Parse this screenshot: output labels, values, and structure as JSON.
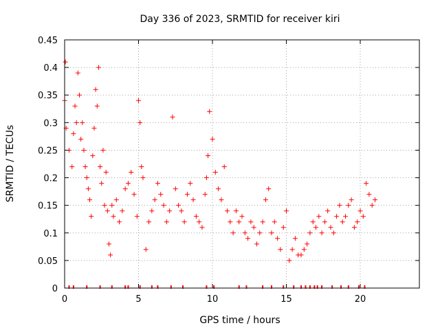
{
  "chart_data": {
    "type": "scatter",
    "title": "Day 336 of 2023, SRMTID for receiver kiri",
    "xlabel": "GPS time / hours",
    "ylabel": "SRMTID / TECUs",
    "xlim": [
      0,
      24
    ],
    "ylim": [
      0,
      0.45
    ],
    "xticks": [
      0,
      5,
      10,
      15,
      20
    ],
    "xtick_labels": [
      "0",
      "5",
      "10",
      "15",
      "20"
    ],
    "yticks": [
      0,
      0.05,
      0.1,
      0.15,
      0.2,
      0.25,
      0.3,
      0.35,
      0.4,
      0.45
    ],
    "ytick_labels": [
      "0",
      "0.05",
      "0.1",
      "0.15",
      "0.2",
      "0.25",
      "0.3",
      "0.35",
      "0.4",
      "0.45"
    ],
    "grid": true,
    "marker": "plus",
    "color": "#ff0000",
    "series": [
      {
        "name": "SRMTID",
        "x": [
          0.0,
          0.05,
          0.1,
          0.3,
          0.5,
          0.6,
          0.7,
          0.8,
          0.9,
          1.0,
          1.1,
          1.2,
          1.3,
          1.4,
          1.5,
          1.6,
          1.7,
          1.8,
          1.9,
          2.0,
          2.1,
          2.2,
          2.3,
          2.4,
          2.5,
          2.6,
          2.7,
          2.8,
          2.9,
          3.0,
          3.1,
          3.2,
          3.3,
          3.5,
          3.7,
          3.9,
          4.1,
          4.3,
          4.5,
          4.7,
          4.9,
          5.0,
          5.1,
          5.2,
          5.3,
          5.5,
          5.7,
          5.9,
          6.1,
          6.3,
          6.5,
          6.7,
          6.9,
          7.1,
          7.3,
          7.5,
          7.7,
          7.9,
          8.1,
          8.3,
          8.5,
          8.7,
          8.9,
          9.1,
          9.3,
          9.5,
          9.6,
          9.7,
          9.8,
          10.0,
          10.2,
          10.4,
          10.6,
          10.8,
          11.0,
          11.2,
          11.4,
          11.6,
          11.8,
          12.0,
          12.2,
          12.4,
          12.6,
          12.8,
          13.0,
          13.2,
          13.4,
          13.6,
          13.8,
          14.0,
          14.2,
          14.4,
          14.6,
          14.8,
          15.0,
          15.2,
          15.4,
          15.6,
          15.8,
          16.0,
          16.2,
          16.4,
          16.6,
          16.8,
          17.0,
          17.2,
          17.4,
          17.6,
          17.8,
          18.0,
          18.2,
          18.4,
          18.6,
          18.8,
          19.0,
          19.2,
          19.4,
          19.6,
          19.8,
          20.0,
          20.2,
          20.4,
          20.6,
          20.8,
          21.0
        ],
        "y": [
          0.34,
          0.41,
          0.29,
          0.25,
          0.22,
          0.28,
          0.33,
          0.3,
          0.39,
          0.35,
          0.27,
          0.3,
          0.25,
          0.22,
          0.2,
          0.18,
          0.16,
          0.13,
          0.24,
          0.29,
          0.36,
          0.33,
          0.4,
          0.22,
          0.19,
          0.25,
          0.15,
          0.21,
          0.14,
          0.08,
          0.06,
          0.15,
          0.13,
          0.16,
          0.12,
          0.14,
          0.18,
          0.19,
          0.21,
          0.17,
          0.13,
          0.34,
          0.3,
          0.22,
          0.2,
          0.07,
          0.12,
          0.14,
          0.16,
          0.19,
          0.17,
          0.15,
          0.12,
          0.14,
          0.31,
          0.18,
          0.15,
          0.14,
          0.12,
          0.17,
          0.19,
          0.16,
          0.13,
          0.12,
          0.11,
          0.17,
          0.2,
          0.24,
          0.32,
          0.27,
          0.21,
          0.18,
          0.16,
          0.22,
          0.14,
          0.12,
          0.1,
          0.14,
          0.12,
          0.13,
          0.1,
          0.09,
          0.12,
          0.11,
          0.08,
          0.1,
          0.12,
          0.16,
          0.18,
          0.1,
          0.12,
          0.09,
          0.07,
          0.11,
          0.14,
          0.05,
          0.07,
          0.09,
          0.06,
          0.06,
          0.07,
          0.08,
          0.1,
          0.12,
          0.11,
          0.13,
          0.1,
          0.12,
          0.14,
          0.11,
          0.1,
          0.13,
          0.15,
          0.12,
          0.13,
          0.15,
          0.16,
          0.11,
          0.12,
          0.14,
          0.13,
          0.19,
          0.17,
          0.15,
          0.16
        ]
      }
    ],
    "gap_marks_at_zero": [
      0.3,
      0.6,
      1.5,
      2.4,
      3.2,
      4.1,
      4.3,
      5.1,
      5.9,
      6.3,
      7.2,
      8.0,
      9.6,
      10.1,
      11.8,
      12.3,
      13.4,
      14.0,
      14.8,
      15.5,
      16.0,
      16.3,
      16.6,
      16.9,
      17.1,
      17.4,
      18.1,
      18.7,
      19.2,
      19.9,
      20.3
    ]
  }
}
